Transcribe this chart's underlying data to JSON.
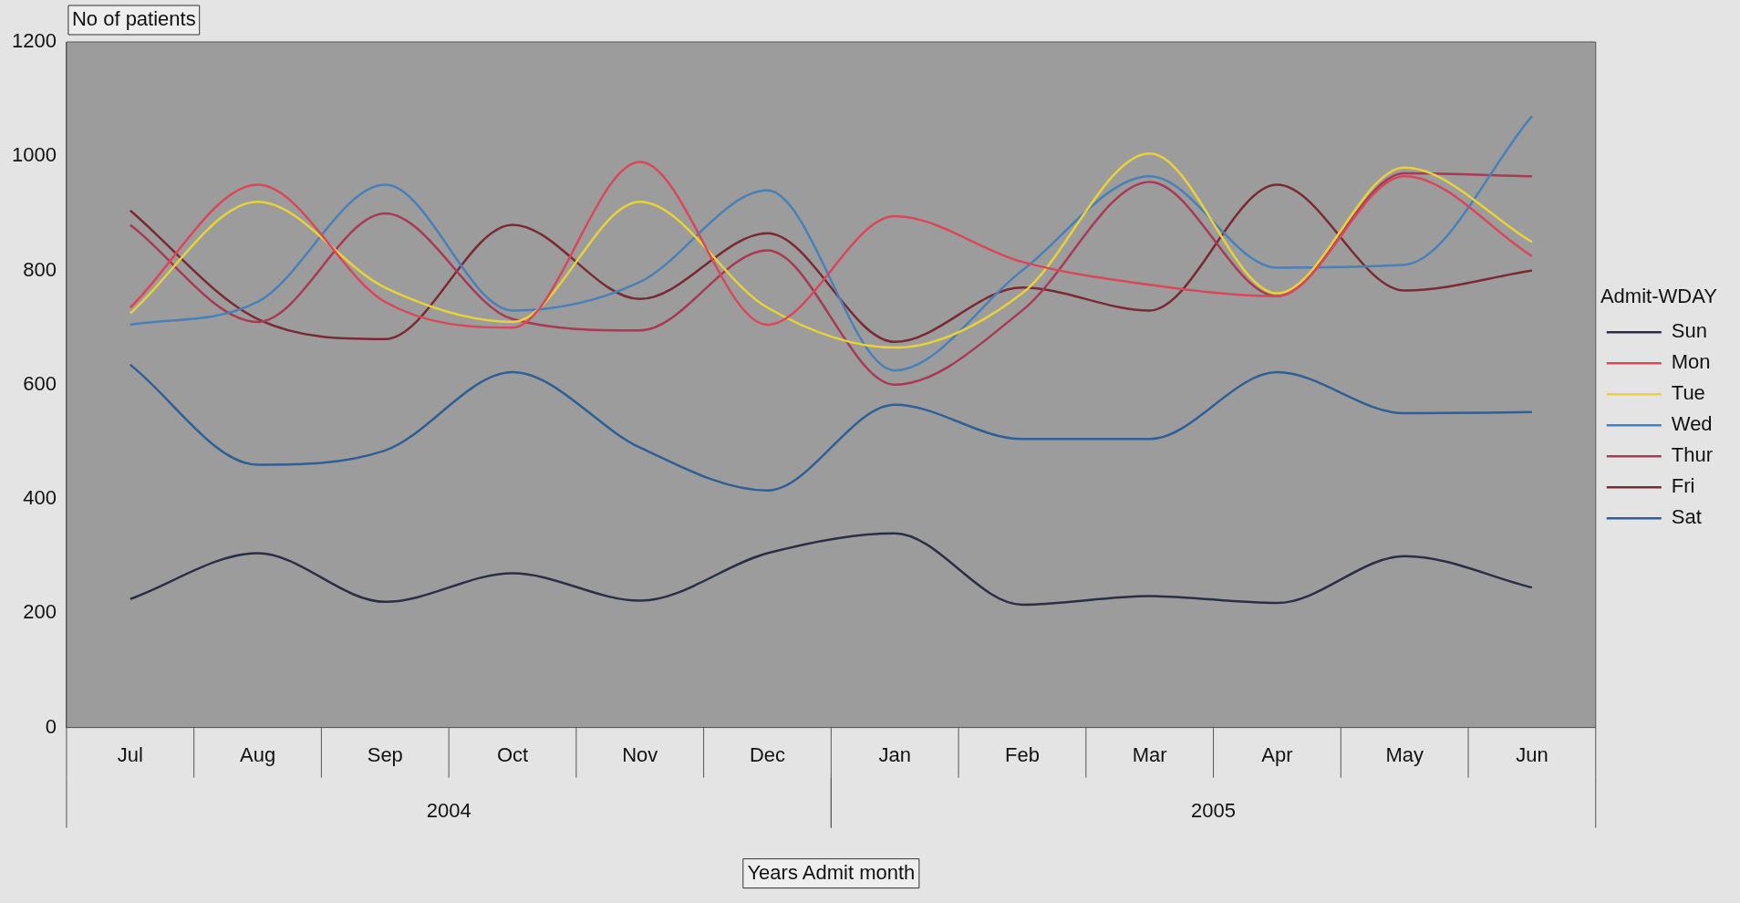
{
  "chart_data": {
    "type": "line",
    "ylabel": "No of patients",
    "xlabel": "Years Admit month",
    "legend_title": "Admit-WDAY",
    "legend": "right",
    "grid": false,
    "marker": "none",
    "line_style": "solid",
    "categories": [
      "Jul",
      "Aug",
      "Sep",
      "Oct",
      "Nov",
      "Dec",
      "Jan",
      "Feb",
      "Mar",
      "Apr",
      "May",
      "Jun"
    ],
    "annotations": [
      "2004",
      "2005"
    ],
    "ylim": [
      0,
      1200
    ],
    "yticks": [
      0,
      200,
      400,
      600,
      800,
      1000,
      1200
    ],
    "series": [
      {
        "name": "Sun",
        "color": "#2b2f45",
        "values": [
          225,
          305,
          220,
          270,
          222,
          305,
          340,
          215,
          230,
          218,
          300,
          245
        ]
      },
      {
        "name": "Mon",
        "color": "#d9485a",
        "values": [
          735,
          950,
          745,
          700,
          990,
          705,
          895,
          815,
          775,
          755,
          965,
          825
        ]
      },
      {
        "name": "Tue",
        "color": "#e8d23a",
        "values": [
          725,
          920,
          770,
          710,
          920,
          735,
          665,
          760,
          1005,
          760,
          980,
          850
        ]
      },
      {
        "name": "Wed",
        "color": "#4a80b8",
        "values": [
          705,
          745,
          950,
          730,
          780,
          940,
          625,
          800,
          965,
          805,
          810,
          1070
        ]
      },
      {
        "name": "Thur",
        "color": "#a83a55",
        "values": [
          880,
          710,
          900,
          715,
          695,
          835,
          600,
          730,
          955,
          755,
          970,
          965
        ]
      },
      {
        "name": "Fri",
        "color": "#7a2a35",
        "values": [
          905,
          715,
          680,
          880,
          750,
          865,
          675,
          770,
          730,
          950,
          765,
          800
        ]
      },
      {
        "name": "Sat",
        "color": "#2f5f95",
        "values": [
          635,
          460,
          485,
          622,
          490,
          415,
          565,
          505,
          505,
          622,
          550,
          552
        ]
      }
    ]
  }
}
